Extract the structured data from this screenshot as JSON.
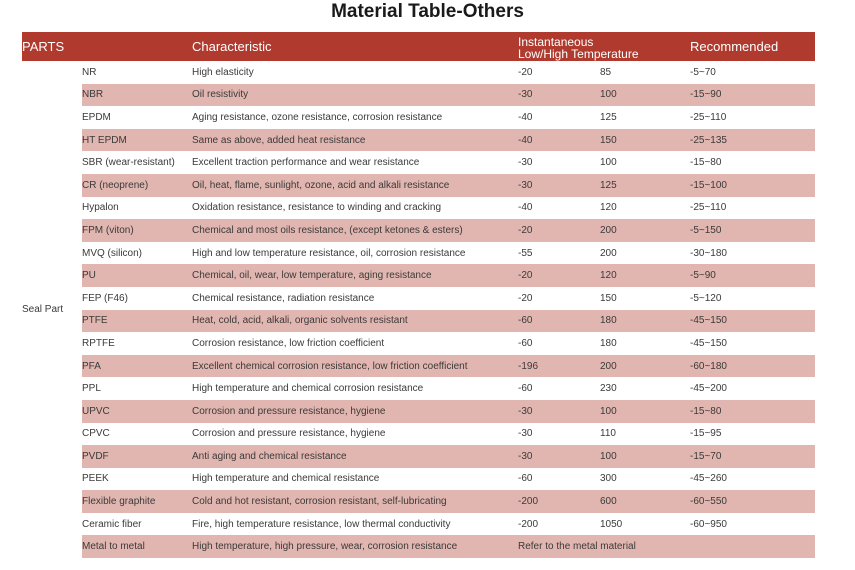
{
  "title": "Material Table-Others",
  "headers": {
    "parts": "PARTS",
    "characteristic": "Characteristic",
    "instantaneous_line1": "Instantaneous",
    "instantaneous_line2": "Low/High Temperature",
    "recommended": "Recommended"
  },
  "group_label": "Seal Part",
  "rows": [
    {
      "part": "NR",
      "characteristic": "High elasticity",
      "low": "-20",
      "high": "85",
      "recommended": "-5~70"
    },
    {
      "part": "NBR",
      "characteristic": "Oil resistivity",
      "low": "-30",
      "high": "100",
      "recommended": "-15~90"
    },
    {
      "part": "EPDM",
      "characteristic": "Aging resistance, ozone resistance, corrosion resistance",
      "low": "-40",
      "high": "125",
      "recommended": "-25~110"
    },
    {
      "part": "HT EPDM",
      "characteristic": "Same as above, added heat resistance",
      "low": "-40",
      "high": "150",
      "recommended": "-25~135"
    },
    {
      "part": "SBR (wear-resistant)",
      "characteristic": "Excellent traction performance and wear resistance",
      "low": "-30",
      "high": "100",
      "recommended": "-15~80"
    },
    {
      "part": "CR (neoprene)",
      "characteristic": "Oil, heat, flame, sunlight, ozone, acid and alkali resistance",
      "low": "-30",
      "high": "125",
      "recommended": "-15~100"
    },
    {
      "part": "Hypalon",
      "characteristic": "Oxidation resistance, resistance to winding and cracking",
      "low": "-40",
      "high": "120",
      "recommended": "-25~110"
    },
    {
      "part": "FPM (viton)",
      "characteristic": "Chemical and  most oils resistance, (except ketones & esters)",
      "low": "-20",
      "high": "200",
      "recommended": "-5~150"
    },
    {
      "part": "MVQ (silicon)",
      "characteristic": "High and low temperature resistance, oil, corrosion resistance",
      "low": "-55",
      "high": "200",
      "recommended": "-30~180"
    },
    {
      "part": "PU",
      "characteristic": "Chemical, oil, wear, low temperature, aging resistance",
      "low": "-20",
      "high": "120",
      "recommended": "-5~90"
    },
    {
      "part": "FEP (F46)",
      "characteristic": "Chemical resistance, radiation resistance",
      "low": "-20",
      "high": "150",
      "recommended": "-5~120"
    },
    {
      "part": "PTFE",
      "characteristic": "Heat, cold, acid, alkali, organic solvents resistant",
      "low": "-60",
      "high": "180",
      "recommended": "-45~150"
    },
    {
      "part": "RPTFE",
      "characteristic": "Corrosion resistance, low friction coefficient",
      "low": "-60",
      "high": "180",
      "recommended": "-45~150"
    },
    {
      "part": "PFA",
      "characteristic": "Excellent chemical corrosion resistance, low friction coefficient",
      "low": "-196",
      "high": "200",
      "recommended": "-60~180"
    },
    {
      "part": "PPL",
      "characteristic": "High temperature and chemical corrosion resistance",
      "low": "-60",
      "high": "230",
      "recommended": "-45~200"
    },
    {
      "part": "UPVC",
      "characteristic": "Corrosion and pressure resistance, hygiene",
      "low": "-30",
      "high": "100",
      "recommended": "-15~80"
    },
    {
      "part": "CPVC",
      "characteristic": "Corrosion and pressure resistance, hygiene",
      "low": "-30",
      "high": "110",
      "recommended": "-15~95"
    },
    {
      "part": "PVDF",
      "characteristic": "Anti aging and chemical resistance",
      "low": "-30",
      "high": "100",
      "recommended": "-15~70"
    },
    {
      "part": "PEEK",
      "characteristic": "High temperature and chemical resistance",
      "low": "-60",
      "high": "300",
      "recommended": "-45~260"
    },
    {
      "part": "Flexible graphite",
      "characteristic": "Cold and hot resistant, corrosion resistant, self-lubricating",
      "low": "-200",
      "high": "600",
      "recommended": "-60~550"
    },
    {
      "part": "Ceramic fiber",
      "characteristic": "Fire, high temperature resistance, low thermal conductivity",
      "low": "-200",
      "high": "1050",
      "recommended": "-60~950"
    },
    {
      "part": "Metal to metal",
      "characteristic": "High temperature, high pressure, wear, corrosion resistance",
      "note": "Refer to the metal material"
    }
  ],
  "colors": {
    "header_bg": "#b03a2e",
    "alt_row_bg": "#e2b6b0",
    "header_text": "#ffffff"
  }
}
